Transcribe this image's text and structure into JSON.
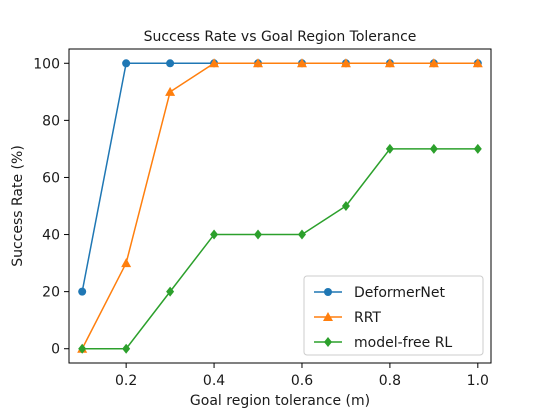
{
  "chart_data": {
    "type": "line",
    "title": "Success Rate vs Goal Region Tolerance",
    "xlabel": "Goal region tolerance (m)",
    "ylabel": "Success Rate (%)",
    "xlim": [
      0.07,
      1.03
    ],
    "ylim": [
      -5,
      105
    ],
    "xticks": [
      0.2,
      0.4,
      0.6,
      0.8,
      1.0
    ],
    "xtick_labels": [
      "0.2",
      "0.4",
      "0.6",
      "0.8",
      "1.0"
    ],
    "yticks": [
      0,
      20,
      40,
      60,
      80,
      100
    ],
    "ytick_labels": [
      "0",
      "20",
      "40",
      "60",
      "80",
      "100"
    ],
    "grid": false,
    "legend_position": "lower-right",
    "x": [
      0.1,
      0.2,
      0.3,
      0.4,
      0.5,
      0.6,
      0.7,
      0.8,
      0.9,
      1.0
    ],
    "series": [
      {
        "name": "DeformerNet",
        "color": "#1f77b4",
        "marker": "circle",
        "values": [
          20,
          100,
          100,
          100,
          100,
          100,
          100,
          100,
          100,
          100
        ]
      },
      {
        "name": "RRT",
        "color": "#ff7f0e",
        "marker": "triangle",
        "values": [
          0,
          30,
          90,
          100,
          100,
          100,
          100,
          100,
          100,
          100
        ]
      },
      {
        "name": "model-free RL",
        "color": "#2ca02c",
        "marker": "diamond",
        "values": [
          0,
          0,
          20,
          40,
          40,
          40,
          50,
          70,
          70,
          70
        ]
      }
    ]
  }
}
